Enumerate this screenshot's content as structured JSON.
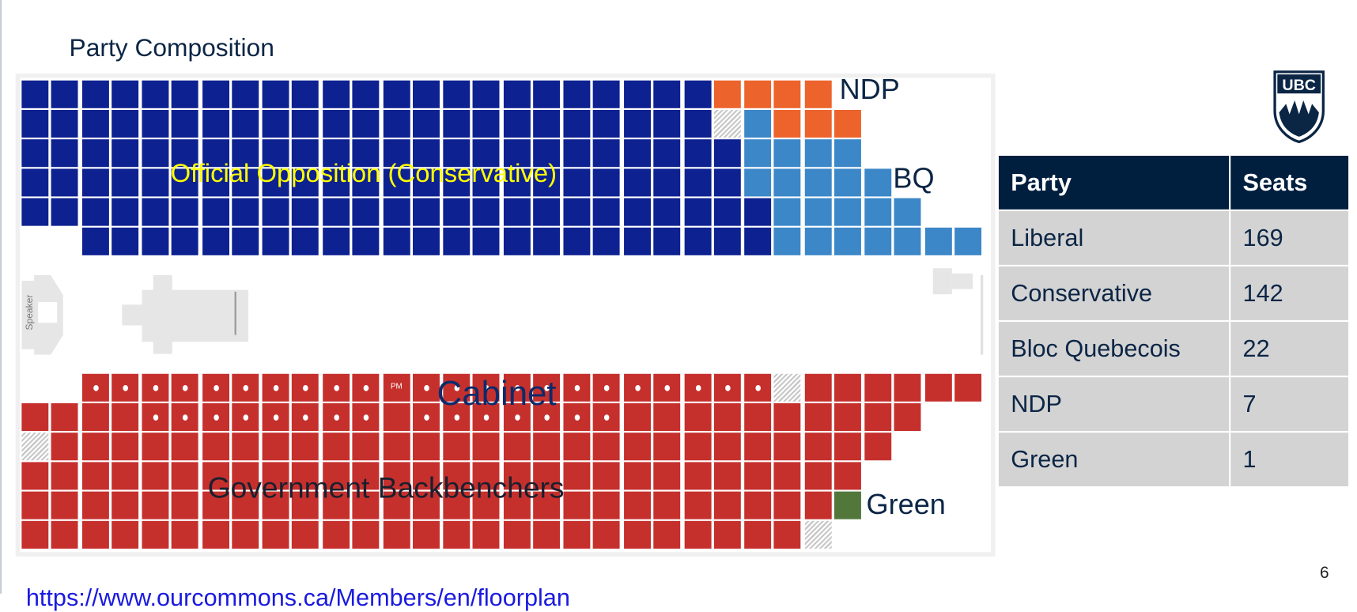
{
  "slide": {
    "title": "Party Composition",
    "page_number": "6",
    "source_url": "https://www.ourcommons.ca/Members/en/floorplan",
    "logo_text": "UBC"
  },
  "floorplan": {
    "labels": {
      "opposition": "Official Opposition (Conservative)",
      "ndp": "NDP",
      "bq": "BQ",
      "cabinet": "Cabinet",
      "backbenchers": "Government Backbenchers",
      "green": "Green",
      "speaker": "Speaker",
      "pm": "PM"
    },
    "legend_codes": {
      "B": "Conservative",
      "O": "NDP",
      "L": "Bloc Quebecois",
      "R": "Liberal",
      "G": "Green",
      "H": "Vacant"
    },
    "colors": {
      "B": "#0d2190",
      "O": "#ec632c",
      "L": "#3c87c8",
      "R": "#c5302d",
      "G": "#52773a",
      "label_yellow": "#ffff00",
      "navy": "#0b2545"
    },
    "opposition_rows": [
      "BBBBBBBBBBBBBBBBBBBBBBBOOOO.....",
      "BBBBBBBBBBBBBBBBBBBBBBBHLOOO....",
      "BBBBBBBBBBBBBBBBBBBBBBBBLLLL....",
      "BBBBBBBBBBBBBBBBBBBBBBBBLLLLL...",
      "BBBBBBBBBBBBBBBBBBBBBBBBBLLLLL..",
      "..BBBBBBBBBBBBBBBBBBBBBBBLLLLLLL"
    ],
    "government_rows": [
      "..RRRRRRRRRRRRRRRRRRRRRRRHRRRRRR",
      "RRRRRRRRRRRRRRRRRRRRRRRRRRRRRR..",
      "HRRRRRRRRRRRRRRRRRRRRRRRRRRRR...",
      "RRRRRRRRRRRRRRRRRRRRRRRRRRRR....",
      "RRRRRRRRRRRRRRRRRRRRRRRRRRRG....",
      "RRRRRRRRRRRRRRRRRRRRRRRRRRH....."
    ],
    "cabinet_marks": [
      "..CCCCCCCCCCPCCCCCCCCCCCC.......",
      "....CCCCCCCC.CCCCCCC............"
    ]
  },
  "table": {
    "headers": [
      "Party",
      "Seats"
    ],
    "rows": [
      [
        "Liberal",
        "169"
      ],
      [
        "Conservative",
        "142"
      ],
      [
        "Bloc Quebecois",
        "22"
      ],
      [
        "NDP",
        "7"
      ],
      [
        "Green",
        "1"
      ]
    ]
  }
}
